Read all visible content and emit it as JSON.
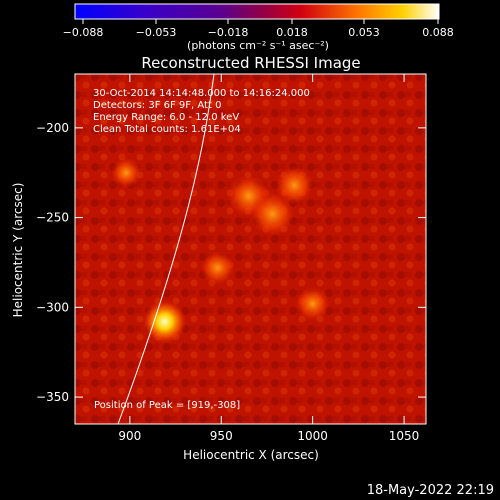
{
  "colorbar": {
    "ticks": [
      "−0.088",
      "−0.053",
      "−0.018",
      "0.018",
      "0.053",
      "0.088"
    ],
    "units": "(photons cm⁻² s⁻¹ asec⁻²)"
  },
  "title": "Reconstructed RHESSI Image",
  "info": {
    "time_range": "30-Oct-2014 14:14:48.000 to 14:16:24.000",
    "detectors": "Detectors: 3F 6F 9F, Att 0",
    "energy": "Energy Range: 6.0 - 12.0 keV",
    "clean": "Clean    Total counts: 1.61E+04",
    "peak": "Position of Peak = [919,-308]"
  },
  "axes": {
    "xlabel": "Heliocentric X (arcsec)",
    "ylabel": "Heliocentric Y (arcsec)",
    "xticks": [
      900,
      950,
      1000,
      1050
    ],
    "yticks": [
      -200,
      -250,
      -300,
      -350
    ],
    "xlim": [
      870,
      1062
    ],
    "ylim": [
      -365,
      -170
    ]
  },
  "sources": [
    {
      "x": 919,
      "y": -308,
      "strength": 1.0
    },
    {
      "x": 965,
      "y": -238,
      "strength": 0.55
    },
    {
      "x": 978,
      "y": -248,
      "strength": 0.6
    },
    {
      "x": 990,
      "y": -232,
      "strength": 0.45
    },
    {
      "x": 948,
      "y": -278,
      "strength": 0.35
    },
    {
      "x": 1000,
      "y": -298,
      "strength": 0.35
    },
    {
      "x": 898,
      "y": -225,
      "strength": 0.25
    }
  ],
  "footer_date": "18-May-2022 22:19"
}
